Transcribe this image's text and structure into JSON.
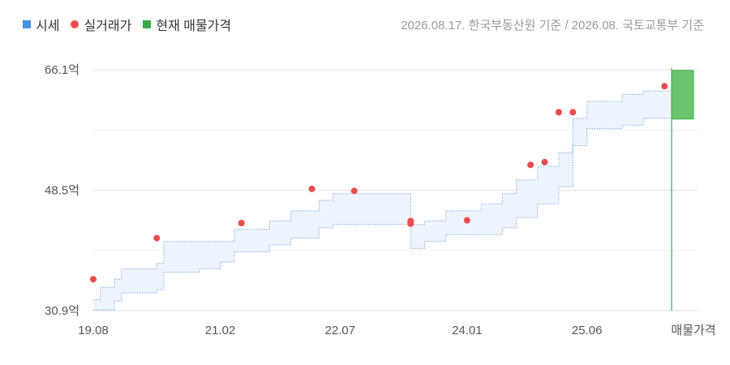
{
  "legend": {
    "items": [
      {
        "label": "시세",
        "color": "#4a90e2",
        "shape": "square"
      },
      {
        "label": "실거래가",
        "color": "#e84c4f",
        "shape": "dot"
      },
      {
        "label": "현재 매물가격",
        "color": "#3aaa48",
        "shape": "square"
      }
    ]
  },
  "source_note": "2026.08.17. 한국부동산원 기준 / 2026.08. 국토교통부 기준",
  "chart_data": {
    "type": "area",
    "unit": "억",
    "ylim": [
      30.9,
      66.1
    ],
    "y_ticks": [
      "66.1억",
      "48.5억",
      "30.9억"
    ],
    "y_tick_values": [
      66.1,
      48.5,
      30.9
    ],
    "x_ticks": [
      "19.08",
      "21.02",
      "22.07",
      "24.01",
      "25.06",
      "매물가격"
    ],
    "x_tick_positions_months": [
      0,
      18,
      35,
      53,
      70
    ],
    "grid": true,
    "legend_position": "top-left",
    "series": [
      {
        "name": "시세",
        "kind": "band",
        "points": [
          {
            "t": 0,
            "lo": 31.0,
            "hi": 32.5
          },
          {
            "t": 1,
            "lo": 31.0,
            "hi": 34.3
          },
          {
            "t": 3,
            "lo": 32.3,
            "hi": 35.5
          },
          {
            "t": 4,
            "lo": 33.5,
            "hi": 37.0
          },
          {
            "t": 7,
            "lo": 33.5,
            "hi": 37.0
          },
          {
            "t": 9,
            "lo": 34.0,
            "hi": 37.8
          },
          {
            "t": 10,
            "lo": 36.5,
            "hi": 41.0
          },
          {
            "t": 15,
            "lo": 37.0,
            "hi": 41.0
          },
          {
            "t": 18,
            "lo": 38.0,
            "hi": 41.0
          },
          {
            "t": 20,
            "lo": 39.5,
            "hi": 42.8
          },
          {
            "t": 25,
            "lo": 40.5,
            "hi": 44.0
          },
          {
            "t": 28,
            "lo": 41.5,
            "hi": 45.5
          },
          {
            "t": 32,
            "lo": 43.0,
            "hi": 47.0
          },
          {
            "t": 34,
            "lo": 43.5,
            "hi": 48.0
          },
          {
            "t": 42,
            "lo": 43.5,
            "hi": 48.0
          },
          {
            "t": 45,
            "lo": 40.0,
            "hi": 43.5
          },
          {
            "t": 47,
            "lo": 41.0,
            "hi": 44.0
          },
          {
            "t": 50,
            "lo": 42.0,
            "hi": 45.5
          },
          {
            "t": 55,
            "lo": 42.0,
            "hi": 46.5
          },
          {
            "t": 58,
            "lo": 43.0,
            "hi": 48.0
          },
          {
            "t": 60,
            "lo": 44.5,
            "hi": 50.0
          },
          {
            "t": 63,
            "lo": 46.5,
            "hi": 52.0
          },
          {
            "t": 66,
            "lo": 49.0,
            "hi": 54.0
          },
          {
            "t": 68,
            "lo": 55.0,
            "hi": 59.0
          },
          {
            "t": 70,
            "lo": 57.5,
            "hi": 61.5
          },
          {
            "t": 75,
            "lo": 58.0,
            "hi": 62.5
          },
          {
            "t": 78,
            "lo": 59.0,
            "hi": 63.0
          },
          {
            "t": 82,
            "lo": 59.0,
            "hi": 63.0
          }
        ]
      },
      {
        "name": "실거래가",
        "kind": "scatter",
        "points": [
          {
            "t": 0,
            "v": 35.5
          },
          {
            "t": 9,
            "v": 41.5
          },
          {
            "t": 21,
            "v": 43.7
          },
          {
            "t": 31,
            "v": 48.7
          },
          {
            "t": 37,
            "v": 48.4
          },
          {
            "t": 45,
            "v": 44.0
          },
          {
            "t": 45,
            "v": 43.6
          },
          {
            "t": 53,
            "v": 44.1
          },
          {
            "t": 62,
            "v": 52.2
          },
          {
            "t": 64,
            "v": 52.6
          },
          {
            "t": 66,
            "v": 59.9
          },
          {
            "t": 68,
            "v": 59.9
          },
          {
            "t": 81,
            "v": 63.7
          }
        ]
      },
      {
        "name": "현재 매물가격",
        "kind": "range-bar",
        "lo": 58.9,
        "hi": 66.0
      }
    ]
  }
}
